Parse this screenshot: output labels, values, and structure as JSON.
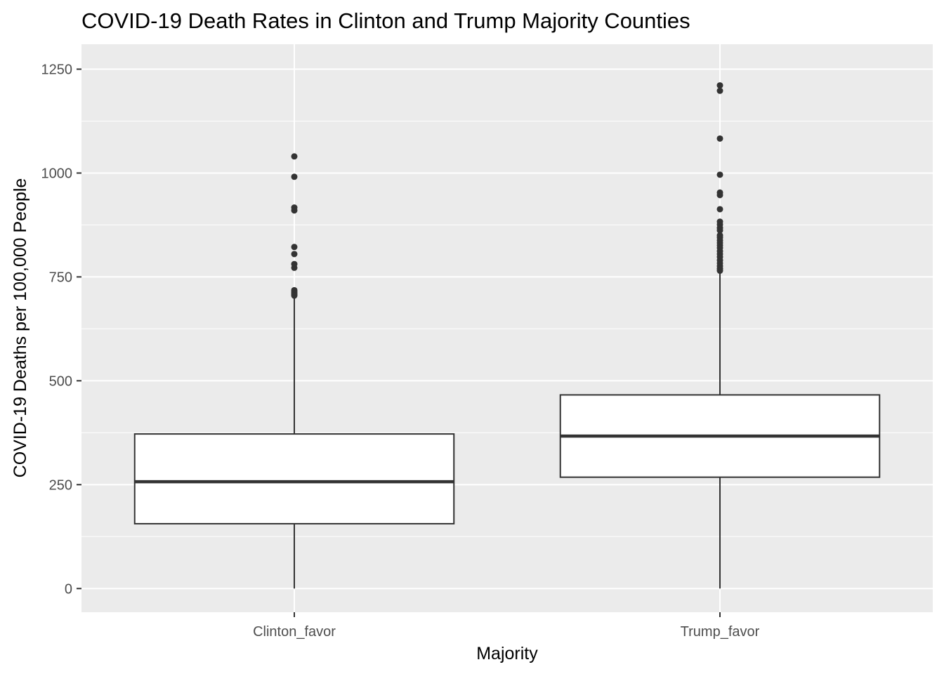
{
  "chart_data": {
    "type": "box",
    "title": "COVID-19 Death Rates in Clinton and Trump Majority Counties",
    "xlabel": "Majority",
    "ylabel": "COVID-19 Deaths per 100,000 People",
    "ylim": [
      -57,
      1310
    ],
    "y_ticks": [
      0,
      250,
      500,
      750,
      1000,
      1250
    ],
    "y_tick_labels": [
      "0",
      "250",
      "500",
      "750",
      "1000",
      "1250"
    ],
    "grid": true,
    "categories": [
      "Clinton_favor",
      "Trump_favor"
    ],
    "boxes": [
      {
        "category": "Clinton_favor",
        "whisker_low": 0,
        "q1": 156,
        "median": 257,
        "q3": 372,
        "whisker_high": 702,
        "outliers": [
          1040,
          991,
          917,
          910,
          822,
          805,
          781,
          772,
          718,
          714,
          711,
          708,
          705
        ]
      },
      {
        "category": "Trump_favor",
        "whisker_low": 0,
        "q1": 268,
        "median": 367,
        "q3": 466,
        "whisker_high": 762,
        "outliers": [
          1211,
          1198,
          1083,
          996,
          953,
          947,
          913,
          883,
          876,
          868,
          862,
          850,
          845,
          838,
          832,
          826,
          820,
          812,
          805,
          798,
          790,
          783,
          776,
          770,
          765
        ]
      }
    ],
    "colors": {
      "panel_background": "#ebebeb",
      "grid": "#ffffff",
      "box_fill": "#ffffff",
      "box_line": "#333333",
      "outlier": "#333333",
      "tick_label": "#4d4d4d",
      "title": "#000000"
    }
  }
}
